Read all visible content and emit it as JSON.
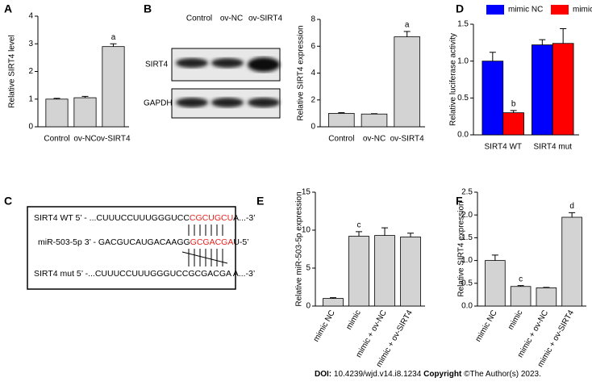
{
  "chart_data": [
    {
      "type": "bar",
      "panel": "A",
      "y_label": "Relative SIRT4 level",
      "categories": [
        "Control",
        "ov-NC",
        "ov-SIRT4"
      ],
      "values": [
        1.0,
        1.05,
        2.9
      ],
      "errors": [
        0.03,
        0.05,
        0.1
      ],
      "annotations": [
        null,
        null,
        "a"
      ],
      "color": "#d3d3d3",
      "ylim": [
        0,
        4
      ],
      "yticks": [
        0,
        1,
        2,
        3,
        4
      ]
    },
    {
      "type": "bar",
      "panel": "B",
      "y_label": "Relative SIRT4 expression",
      "categories": [
        "Control",
        "ov-NC",
        "ov-SIRT4"
      ],
      "values": [
        1.0,
        0.95,
        6.7
      ],
      "errors": [
        0.05,
        0.03,
        0.4
      ],
      "annotations": [
        null,
        null,
        "a"
      ],
      "color": "#d3d3d3",
      "ylim": [
        0,
        8
      ],
      "yticks": [
        0,
        2,
        4,
        6,
        8
      ]
    },
    {
      "type": "bar",
      "panel": "D",
      "y_label": "Relative luciferase activity",
      "categories": [
        "SIRT4 WT",
        "SIRT4 mut"
      ],
      "series": [
        {
          "name": "mimic NC",
          "color": "#0000ff",
          "values": [
            1.0,
            1.22
          ],
          "errors": [
            0.12,
            0.07
          ],
          "annotations": [
            null,
            null
          ]
        },
        {
          "name": "mimic",
          "color": "#ff0000",
          "values": [
            0.3,
            1.24
          ],
          "errors": [
            0.03,
            0.2
          ],
          "annotations": [
            "b",
            null
          ]
        }
      ],
      "ylim": [
        0,
        1.5
      ],
      "yticks": [
        {
          "value": 0,
          "label": "0.0"
        },
        {
          "value": 0.5,
          "label": "0.5"
        },
        {
          "value": 1,
          "label": "1.0"
        },
        {
          "value": 1.5,
          "label": "1.5"
        }
      ]
    },
    {
      "type": "bar",
      "panel": "E",
      "y_label": "Relative miR-503-5p expression",
      "categories": [
        "mimic NC",
        "mimic",
        "mimic + ov-NC",
        "mimic + ov-SIRT4"
      ],
      "values": [
        1.0,
        9.2,
        9.3,
        9.1
      ],
      "errors": [
        0.1,
        0.6,
        1.0,
        0.5
      ],
      "annotations": [
        null,
        "c",
        null,
        null
      ],
      "color": "#d3d3d3",
      "ylim": [
        0,
        15
      ],
      "yticks": [
        0,
        5,
        10,
        15
      ]
    },
    {
      "type": "bar",
      "panel": "F",
      "y_label": "Relative SIRT4 expression",
      "categories": [
        "mimic NC",
        "mimic",
        "mimic + ov-NC",
        "mimic + ov-SIRT4"
      ],
      "values": [
        1.0,
        0.43,
        0.4,
        1.95
      ],
      "errors": [
        0.12,
        0.02,
        0.01,
        0.1
      ],
      "annotations": [
        null,
        "c",
        null,
        "d"
      ],
      "color": "#d3d3d3",
      "ylim": [
        0,
        2.5
      ],
      "yticks": [
        {
          "value": 0,
          "label": "0.0"
        },
        {
          "value": 0.5,
          "label": "0.5"
        },
        {
          "value": 1,
          "label": "1.0"
        },
        {
          "value": 1.5,
          "label": "1.5"
        },
        {
          "value": 2,
          "label": "2.0"
        },
        {
          "value": 2.5,
          "label": "2.5"
        }
      ]
    }
  ],
  "blot": {
    "columns": [
      "Control",
      "ov-NC",
      "ov-SIRT4"
    ],
    "rows": [
      "SIRT4",
      "GAPDH"
    ]
  },
  "sequence_diagram": {
    "panel": "C",
    "rows": [
      {
        "segments": [
          {
            "text": "SIRT4 WT 5’ - ...CUUUCCUUUGGGUCC",
            "color": "#000000"
          },
          {
            "text": "CGCUGCU",
            "color": "#e8211c"
          },
          {
            "text": "A...-3’",
            "color": "#000000"
          }
        ]
      },
      {
        "segments": [
          {
            "text": "miR-503-5p 3’ - GACGUCAUGACAAGG",
            "color": "#000000"
          },
          {
            "text": "GCGACGA",
            "color": "#e8211c"
          },
          {
            "text": "U-5’",
            "color": "#000000"
          }
        ]
      },
      {
        "segments": [
          {
            "text": "SIRT4 mut 5’ -...CUUUCCUUUGGGUCCGCGACGA A...-3’",
            "color": "#000000"
          }
        ]
      }
    ]
  },
  "footer": {
    "doi_label": "DOI:",
    "doi": "10.4239/wjd.v14.i8.1234",
    "copyright_label": "Copyright",
    "copyright": "©The Author(s) 2023."
  }
}
